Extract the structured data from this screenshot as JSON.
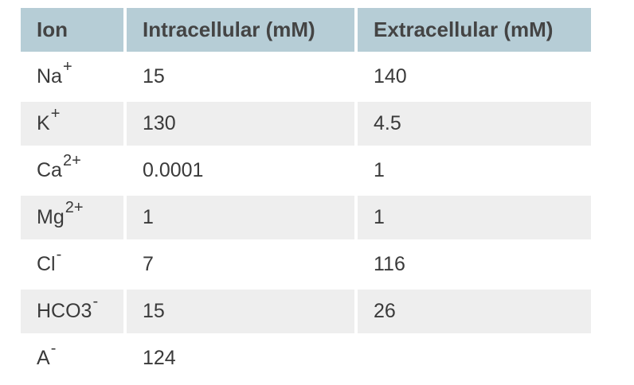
{
  "table": {
    "headers": [
      "Ion",
      "Intracellular (mM)",
      "Extracellular (mM)"
    ],
    "rows": [
      {
        "ion_base": "Na",
        "ion_sup": "+",
        "intracellular": "15",
        "extracellular": "140"
      },
      {
        "ion_base": "K",
        "ion_sup": "+",
        "intracellular": "130",
        "extracellular": "4.5"
      },
      {
        "ion_base": "Ca",
        "ion_sup": "2+",
        "intracellular": "0.0001",
        "extracellular": "1"
      },
      {
        "ion_base": "Mg",
        "ion_sup": "2+",
        "intracellular": "1",
        "extracellular": "1"
      },
      {
        "ion_base": "Cl",
        "ion_sup": "-",
        "intracellular": "7",
        "extracellular": "116"
      },
      {
        "ion_base": "HCO3",
        "ion_sup": "-",
        "intracellular": "15",
        "extracellular": "26"
      },
      {
        "ion_base": "A",
        "ion_sup": "-",
        "intracellular": "124",
        "extracellular": ""
      }
    ]
  },
  "colors": {
    "header_bg": "#b6cdd6",
    "alt_row_bg": "#eeeeee",
    "text": "#3a3a3a"
  }
}
